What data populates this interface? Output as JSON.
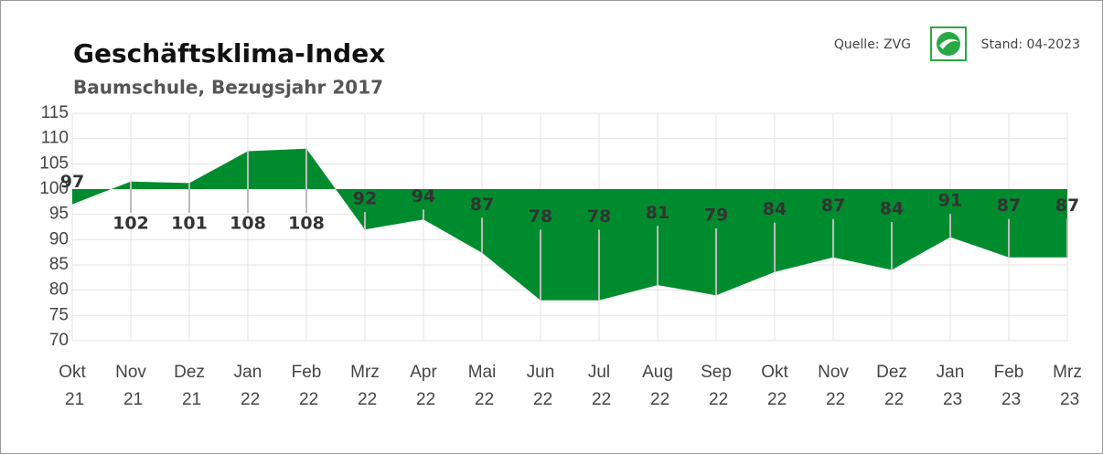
{
  "chart_data": {
    "type": "area",
    "title": "Geschäftsklima-Index",
    "subtitle": "Baumschule, Bezugsjahr 2017",
    "source": "Quelle: ZVG",
    "date": "Stand: 04-2023",
    "categories": [
      "Okt 21",
      "Nov 21",
      "Dez 21",
      "Jan 22",
      "Feb 22",
      "Mrz 22",
      "Apr 22",
      "Mai 22",
      "Jun 22",
      "Jul 22",
      "Aug 22",
      "Sep 22",
      "Okt 22",
      "Nov 22",
      "Dez 22",
      "Jan 23",
      "Feb 23",
      "Mrz 23"
    ],
    "values": [
      97,
      101.5,
      101.2,
      107.5,
      108,
      92,
      94,
      87.4,
      78,
      78,
      81,
      79,
      83.6,
      86.5,
      84,
      90.5,
      86.5,
      86.5
    ],
    "value_labels": [
      "97",
      "102",
      "101",
      "108",
      "108",
      "92",
      "94",
      "87",
      "78",
      "78",
      "81",
      "79",
      "84",
      "87",
      "84",
      "91",
      "87",
      "87"
    ],
    "baseline": 100,
    "color": "#008c2e",
    "ylim": [
      70,
      115
    ],
    "yticks": [
      70,
      75,
      80,
      85,
      90,
      95,
      100,
      105,
      110,
      115
    ],
    "grid": true
  }
}
